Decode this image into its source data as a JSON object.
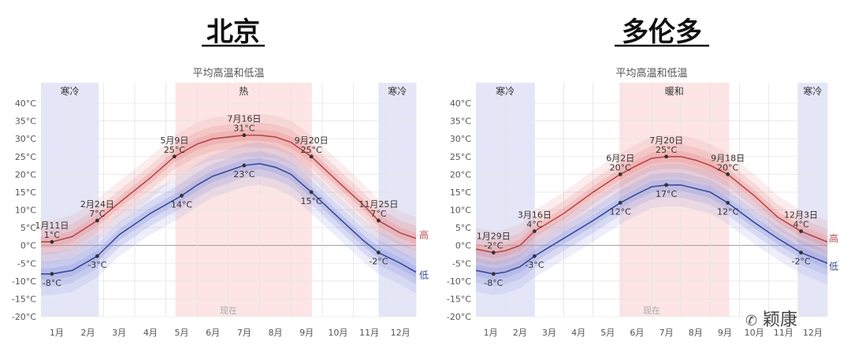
{
  "watermark": "颖康",
  "chart_data": [
    {
      "type": "line",
      "city": "北京",
      "title": "平均高温和低温",
      "yticks": [
        "40°C",
        "35°C",
        "30°C",
        "25°C",
        "20°C",
        "15°C",
        "10°C",
        "5°C",
        "0°C",
        "-5°C",
        "-10°C",
        "-15°C",
        "-20°C"
      ],
      "ylim": [
        -20,
        40
      ],
      "xticks": [
        "1月",
        "2月",
        "3月",
        "4月",
        "5月",
        "6月",
        "7月",
        "8月",
        "9月",
        "10月",
        "11月",
        "12月"
      ],
      "seasons": [
        {
          "label": "寒冷",
          "kind": "cold",
          "start": 0.0,
          "end": 1.85
        },
        {
          "label": "热",
          "kind": "hot",
          "start": 4.3,
          "end": 8.67
        },
        {
          "label": "寒冷",
          "kind": "cold",
          "start": 10.8,
          "end": 12.0
        }
      ],
      "now_label": "现在",
      "now_month": 6.0,
      "series": [
        {
          "name": "高",
          "color": "#b5484b",
          "x": [
            0.0,
            0.35,
            1.0,
            1.8,
            2.5,
            3.5,
            4.27,
            5.0,
            5.5,
            6.5,
            7.0,
            7.5,
            8.0,
            8.65,
            9.5,
            10.3,
            10.8,
            11.5,
            12.0
          ],
          "y": [
            1,
            1,
            2.5,
            7,
            12,
            19,
            25,
            28.5,
            30,
            31,
            31,
            30.5,
            29,
            25,
            18,
            11.5,
            7,
            3.5,
            2
          ]
        },
        {
          "name": "低",
          "color": "#3a4a96",
          "x": [
            0.0,
            0.35,
            1.0,
            1.8,
            2.5,
            3.5,
            4.5,
            5.0,
            5.5,
            6.5,
            7.0,
            7.5,
            8.0,
            8.65,
            9.5,
            10.3,
            10.8,
            11.5,
            12.0
          ],
          "y": [
            -8,
            -8,
            -7,
            -3,
            3,
            9,
            14,
            17,
            19.5,
            22.5,
            23,
            22,
            20,
            15,
            8,
            1.5,
            -2,
            -5,
            -7.5
          ]
        }
      ],
      "annotations": [
        {
          "date": "1月11日",
          "value": "1°C",
          "x": 0.35,
          "y": 1
        },
        {
          "date": "2月24日",
          "value": "7°C",
          "x": 1.8,
          "y": 7
        },
        {
          "date": "5月9日",
          "value": "25°C",
          "x": 4.27,
          "y": 25
        },
        {
          "date": "7月16日",
          "value": "31°C",
          "x": 6.5,
          "y": 31
        },
        {
          "date": "9月20日",
          "value": "25°C",
          "x": 8.65,
          "y": 25
        },
        {
          "date": "11月25日",
          "value": "7°C",
          "x": 10.8,
          "y": 7
        }
      ],
      "low_labels": [
        {
          "value": "-8°C",
          "x": 0.35,
          "y": -8
        },
        {
          "value": "-3°C",
          "x": 1.8,
          "y": -3
        },
        {
          "value": "14°C",
          "x": 4.5,
          "y": 14
        },
        {
          "value": "23°C",
          "x": 6.5,
          "y": 22.5
        },
        {
          "value": "15°C",
          "x": 8.65,
          "y": 15
        },
        {
          "value": "-2°C",
          "x": 10.8,
          "y": -2
        }
      ],
      "legend": [
        "高",
        "低"
      ]
    },
    {
      "type": "line",
      "city": "多伦多",
      "title": "平均高温和低温",
      "yticks": [
        "40°C",
        "35°C",
        "30°C",
        "25°C",
        "20°C",
        "15°C",
        "10°C",
        "5°C",
        "0°C",
        "-5°C",
        "-10°C",
        "-15°C",
        "-20°C"
      ],
      "ylim": [
        -20,
        40
      ],
      "xticks": [
        "1月",
        "2月",
        "3月",
        "4月",
        "5月",
        "6月",
        "7月",
        "8月",
        "9月",
        "10月",
        "11月",
        "12月"
      ],
      "seasons": [
        {
          "label": "寒冷",
          "kind": "cold",
          "start": 0.0,
          "end": 2.0
        },
        {
          "label": "暖和",
          "kind": "hot",
          "start": 4.9,
          "end": 8.65
        },
        {
          "label": "寒冷",
          "kind": "cold",
          "start": 11.0,
          "end": 12.0
        }
      ],
      "now_label": "现在",
      "now_month": 6.0,
      "series": [
        {
          "name": "高",
          "color": "#b5484b",
          "x": [
            0.0,
            0.6,
            1.0,
            1.5,
            2.0,
            3.0,
            4.0,
            4.93,
            5.5,
            6.0,
            6.5,
            7.0,
            7.5,
            8.0,
            8.6,
            9.5,
            10.3,
            11.1,
            12.0
          ],
          "y": [
            -1,
            -2,
            -1.5,
            0,
            4,
            9,
            15,
            20,
            22.5,
            24.5,
            25,
            25,
            24,
            22.5,
            20,
            14,
            8,
            4,
            1
          ]
        },
        {
          "name": "低",
          "color": "#3a4a96",
          "x": [
            0.0,
            0.6,
            1.0,
            1.5,
            2.0,
            3.0,
            4.0,
            4.93,
            5.5,
            6.0,
            6.5,
            7.0,
            7.5,
            8.0,
            8.6,
            9.5,
            10.3,
            11.1,
            12.0
          ],
          "y": [
            -7,
            -8,
            -7.5,
            -6,
            -3,
            2,
            7,
            12,
            14.5,
            16.5,
            17,
            17,
            16,
            15,
            12,
            6.5,
            2,
            -2,
            -5
          ]
        }
      ],
      "annotations": [
        {
          "date": "1月29日",
          "value": "-2°C",
          "x": 0.6,
          "y": -2
        },
        {
          "date": "3月16日",
          "value": "4°C",
          "x": 2.0,
          "y": 4
        },
        {
          "date": "6月2日",
          "value": "20°C",
          "x": 4.93,
          "y": 20
        },
        {
          "date": "7月20日",
          "value": "25°C",
          "x": 6.5,
          "y": 25
        },
        {
          "date": "9月18日",
          "value": "20°C",
          "x": 8.6,
          "y": 20
        },
        {
          "date": "12月3日",
          "value": "4°C",
          "x": 11.1,
          "y": 4
        }
      ],
      "low_labels": [
        {
          "value": "-8°C",
          "x": 0.6,
          "y": -8
        },
        {
          "value": "-3°C",
          "x": 2.0,
          "y": -3
        },
        {
          "value": "12°C",
          "x": 4.93,
          "y": 12
        },
        {
          "value": "17°C",
          "x": 6.5,
          "y": 17
        },
        {
          "value": "12°C",
          "x": 8.6,
          "y": 12
        },
        {
          "value": "-2°C",
          "x": 11.1,
          "y": -2
        }
      ],
      "legend": [
        "高",
        "低"
      ]
    }
  ]
}
